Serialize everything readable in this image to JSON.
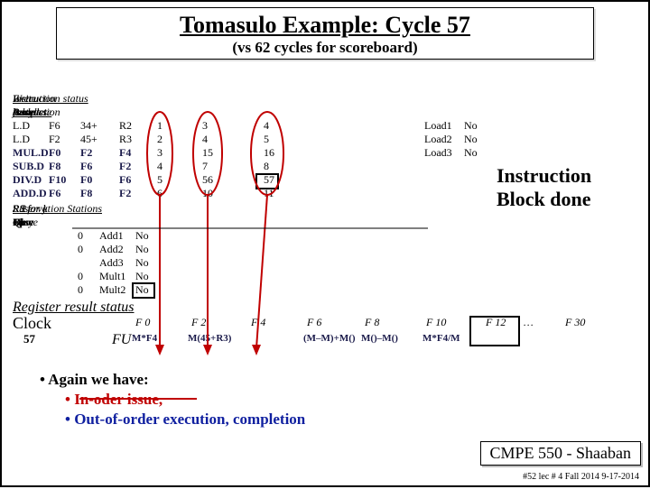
{
  "title": "Tomasulo Example:  Cycle 57",
  "subtitle": "(vs  62 cycles for scoreboard)",
  "instr_status_label": "Instruction status",
  "headers": {
    "instr": "Instruction",
    "j": "j",
    "k": "k",
    "issue": "Issue",
    "exec": "Execution\ncomplete",
    "write": "Write\nResult",
    "busy": "Busy",
    "addr": "Address"
  },
  "rows": [
    {
      "op": "L.D",
      "dst": "F6",
      "j": "34+",
      "k": "R2",
      "issue": "1",
      "exec": "3",
      "write": "4"
    },
    {
      "op": "L.D",
      "dst": "F2",
      "j": "45+",
      "k": "R3",
      "issue": "2",
      "exec": "4",
      "write": "5"
    },
    {
      "op": "MUL.D",
      "dst": "F0",
      "j": "F2",
      "k": "F4",
      "issue": "3",
      "exec": "15",
      "write": "16"
    },
    {
      "op": "SUB.D",
      "dst": "F8",
      "j": "F6",
      "k": "F2",
      "issue": "4",
      "exec": "7",
      "write": "8"
    },
    {
      "op": "DIV.D",
      "dst": "F10",
      "j": "F0",
      "k": "F6",
      "issue": "5",
      "exec": "56",
      "write": "57"
    },
    {
      "op": "ADD.D",
      "dst": "F6",
      "j": "F8",
      "k": "F2",
      "issue": "6",
      "exec": "10",
      "write": "11"
    }
  ],
  "loads": [
    {
      "name": "Load1",
      "busy": "No"
    },
    {
      "name": "Load2",
      "busy": "No"
    },
    {
      "name": "Load3",
      "busy": "No"
    }
  ],
  "rs_label": "Reservation Stations",
  "rs_headers": {
    "time": "Time",
    "name": "Name",
    "busy": "Busy",
    "op": "Op",
    "s1": "S 1",
    "vj": "Vj",
    "s2": "S 2",
    "vk": "Vk",
    "rsj": "RS for j",
    "qj": "Qj",
    "rsk": "RS for k",
    "qk": "Qk"
  },
  "rs_rows": [
    {
      "time": "0",
      "name": "Add1",
      "busy": "No"
    },
    {
      "time": "0",
      "name": "Add2",
      "busy": "No"
    },
    {
      "time": "",
      "name": "Add3",
      "busy": "No"
    },
    {
      "time": "0",
      "name": "Mult1",
      "busy": "No"
    },
    {
      "time": "0",
      "name": "Mult2",
      "busy": "No"
    }
  ],
  "reg_label": "Register result status",
  "clock_label": "Clock",
  "clock_value": "57",
  "fu_label": "FU",
  "regs": [
    "F 0",
    "F 2",
    "F 4",
    "F 6",
    "F 8",
    "F 10",
    "F 12",
    "…",
    "F 30"
  ],
  "fu_vals": [
    "M*F4",
    "M(45+R3)",
    "",
    "(M–M)+M()",
    "M()–M()",
    "M*F4/M",
    "",
    ""
  ],
  "note": "Instruction\nBlock done",
  "bullets": [
    "Again we have:",
    "In-oder issue,",
    "Out-of-order execution, completion"
  ],
  "course": "CMPE 550 - Shaaban",
  "pageinfo": "#52  lec # 4 Fall 2014   9-17-2014",
  "colors": {
    "red": "#c00000",
    "blue": "#1020a0",
    "box": "#000"
  }
}
